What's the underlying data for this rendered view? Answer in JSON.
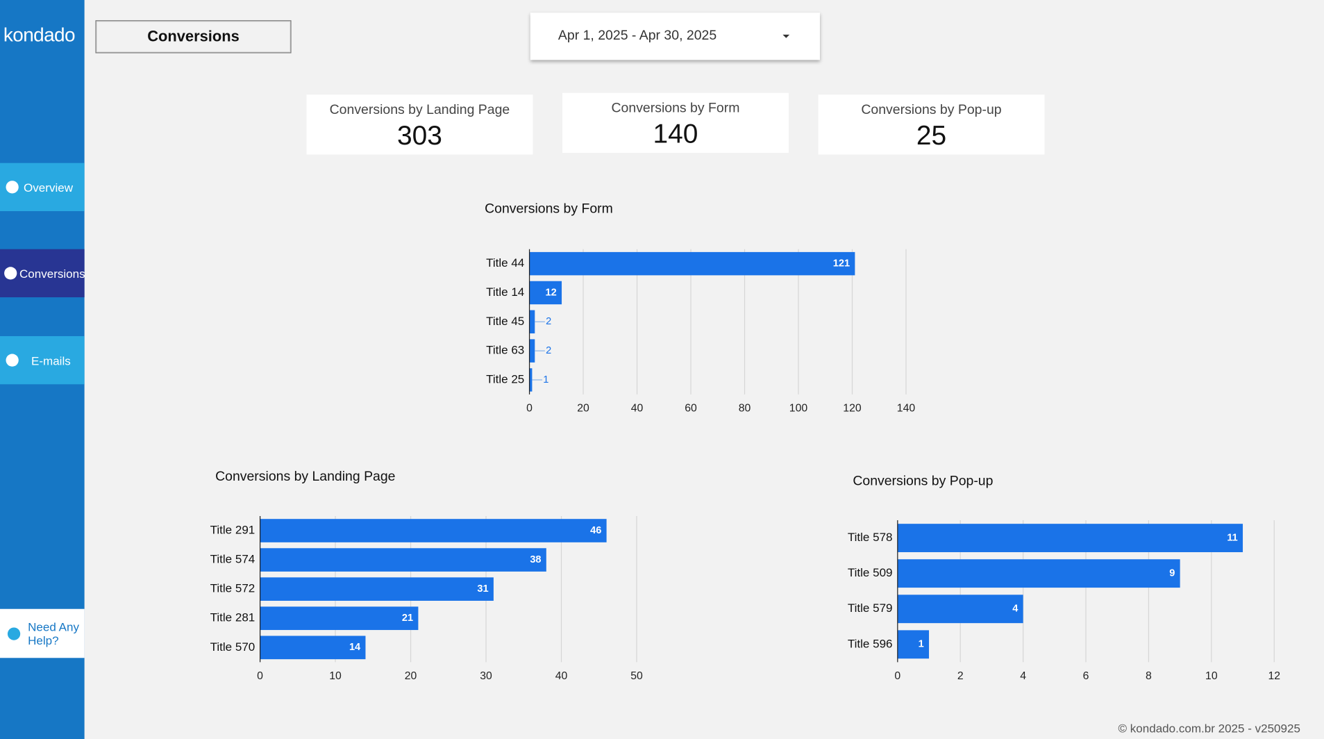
{
  "sidebar": {
    "logo": "kondado",
    "nav": [
      "Overview",
      "Conversions",
      "E-mails"
    ],
    "help": "Need Any Help?"
  },
  "header": {
    "page_button": "Conversions",
    "date_range": "Apr 1, 2025 - Apr 30, 2025"
  },
  "kpis": [
    {
      "label": "Conversions by Landing Page",
      "value": 303
    },
    {
      "label": "Conversions by Form",
      "value": 140
    },
    {
      "label": "Conversions by Pop-up",
      "value": 25
    }
  ],
  "chart_data": [
    {
      "type": "hbar",
      "title": "Conversions by Form",
      "categories": [
        "Title 44",
        "Title 14",
        "Title 45",
        "Title 63",
        "Title 25"
      ],
      "values": [
        121,
        12,
        2,
        2,
        1
      ],
      "color": "#1a73e8",
      "xlim": [
        0,
        140
      ],
      "xticks": [
        0,
        20,
        40,
        60,
        80,
        100,
        120,
        140
      ],
      "grid": true
    },
    {
      "type": "hbar",
      "title": "Conversions by Landing Page",
      "categories": [
        "Title 291",
        "Title 574",
        "Title 572",
        "Title 281",
        "Title 570"
      ],
      "values": [
        46,
        38,
        31,
        21,
        14
      ],
      "color": "#1a73e8",
      "xlim": [
        0,
        50
      ],
      "xticks": [
        0,
        10,
        20,
        30,
        40,
        50
      ],
      "grid": true
    },
    {
      "type": "hbar",
      "title": "Conversions by Pop-up",
      "categories": [
        "Title 578",
        "Title 509",
        "Title 579",
        "Title 596"
      ],
      "values": [
        11,
        9,
        4,
        1
      ],
      "color": "#1a73e8",
      "xlim": [
        0,
        12
      ],
      "xticks": [
        0,
        2,
        4,
        6,
        8,
        10,
        12
      ],
      "grid": true
    }
  ],
  "footer": "© kondado.com.br 2025 - v250925"
}
